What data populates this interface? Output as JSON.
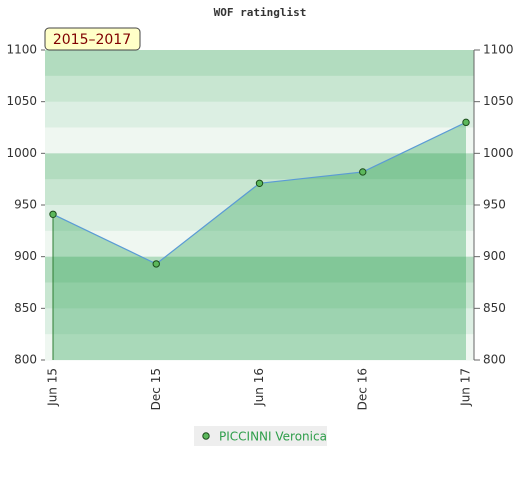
{
  "chart_data": {
    "type": "area",
    "title": "WOF ratinglist",
    "badge": "2015–2017",
    "categories": [
      "Jun 15",
      "Dec 15",
      "Jun 16",
      "Dec 16",
      "Jun 17"
    ],
    "series": [
      {
        "name": "PICCINNI Veronica",
        "color": "#5b9bd5",
        "values": [
          941,
          893,
          971,
          982,
          1030
        ]
      }
    ],
    "ylim": [
      800,
      1100
    ],
    "yticks": [
      800,
      850,
      900,
      950,
      1000,
      1050,
      1100
    ],
    "y2lim": [
      800,
      1100
    ],
    "y2ticks": [
      800,
      850,
      900,
      950,
      1000,
      1050,
      1100
    ]
  }
}
